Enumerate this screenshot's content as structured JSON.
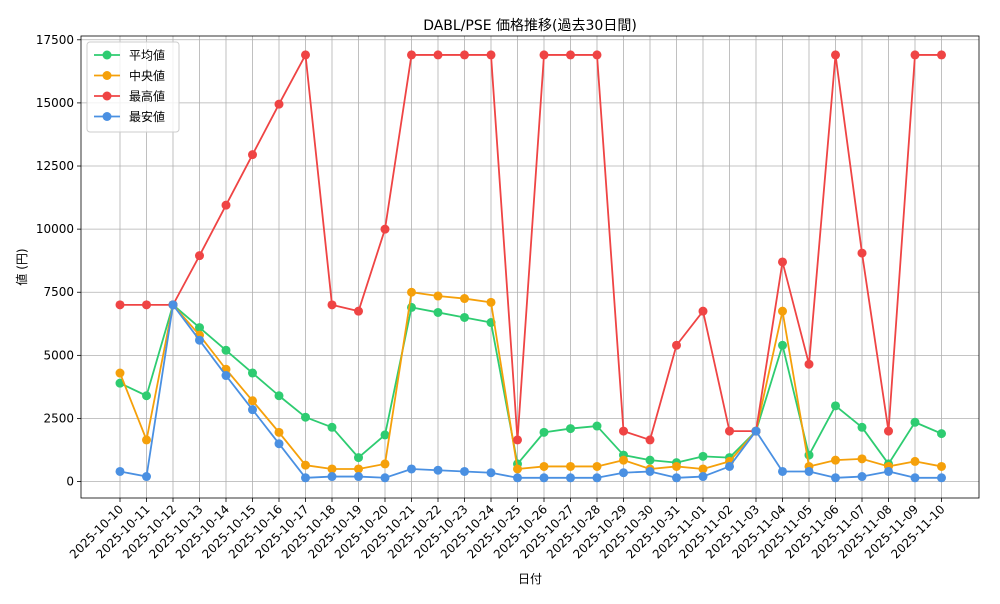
{
  "chart_data": {
    "type": "line",
    "title": "DABL/PSE 価格推移(過去30日間)",
    "xlabel": "日付",
    "ylabel": "値 (円)",
    "ylim": [
      -650,
      17650
    ],
    "yticks": [
      0,
      2500,
      5000,
      7500,
      10000,
      12500,
      15000,
      17500
    ],
    "grid": true,
    "legend_position": "top-left",
    "categories": [
      "2025-10-10",
      "2025-10-11",
      "2025-10-12",
      "2025-10-13",
      "2025-10-14",
      "2025-10-15",
      "2025-10-16",
      "2025-10-17",
      "2025-10-18",
      "2025-10-19",
      "2025-10-20",
      "2025-10-21",
      "2025-10-22",
      "2025-10-23",
      "2025-10-24",
      "2025-10-25",
      "2025-10-26",
      "2025-10-27",
      "2025-10-28",
      "2025-10-29",
      "2025-10-30",
      "2025-10-31",
      "2025-11-01",
      "2025-11-02",
      "2025-11-03",
      "2025-11-04",
      "2025-11-05",
      "2025-11-06",
      "2025-11-07",
      "2025-11-08",
      "2025-11-09",
      "2025-11-10"
    ],
    "series": [
      {
        "name": "平均値",
        "color": "#2ecc71",
        "values": [
          3900,
          3400,
          7000,
          6100,
          5200,
          4300,
          3400,
          2550,
          2150,
          950,
          1850,
          6900,
          6700,
          6500,
          6300,
          700,
          1950,
          2100,
          2200,
          1050,
          850,
          750,
          1000,
          950,
          2000,
          5400,
          1050,
          3000,
          2150,
          700,
          2350,
          1900
        ]
      },
      {
        "name": "中央値",
        "color": "#f5a00a",
        "values": [
          4300,
          1650,
          7000,
          5800,
          4450,
          3200,
          1950,
          650,
          500,
          500,
          700,
          7500,
          7350,
          7250,
          7100,
          500,
          600,
          600,
          600,
          850,
          500,
          600,
          500,
          800,
          2000,
          6750,
          600,
          850,
          900,
          600,
          800,
          600
        ]
      },
      {
        "name": "最高値",
        "color": "#ef4444",
        "values": [
          7000,
          7000,
          7000,
          8950,
          10950,
          12950,
          14950,
          16900,
          7000,
          6750,
          10000,
          16900,
          16900,
          16900,
          16900,
          1650,
          16900,
          16900,
          16900,
          2000,
          1650,
          5400,
          6750,
          2000,
          2000,
          8700,
          4650,
          16900,
          9050,
          2000,
          16900,
          16900
        ]
      },
      {
        "name": "最安値",
        "color": "#4a90e2",
        "values": [
          400,
          200,
          7000,
          5600,
          4200,
          2850,
          1500,
          150,
          200,
          200,
          150,
          500,
          450,
          400,
          350,
          150,
          150,
          150,
          150,
          350,
          400,
          150,
          200,
          600,
          2000,
          400,
          400,
          150,
          200,
          400,
          150,
          150
        ]
      }
    ]
  }
}
